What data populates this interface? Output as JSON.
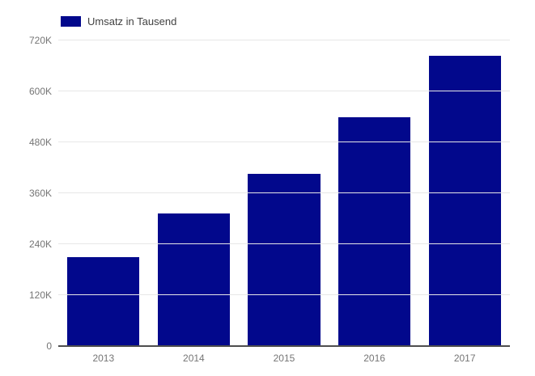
{
  "chart_data": {
    "type": "bar",
    "title": "",
    "legend": {
      "label": "Umsatz in Tausend",
      "position": "top-left"
    },
    "categories": [
      "2013",
      "2014",
      "2015",
      "2016",
      "2017"
    ],
    "values": [
      210000,
      312000,
      405000,
      540000,
      684000
    ],
    "series": [
      {
        "name": "Umsatz in Tausend",
        "values": [
          210000,
          312000,
          405000,
          540000,
          684000
        ]
      }
    ],
    "xlabel": "",
    "ylabel": "",
    "ylim": [
      0,
      720000
    ],
    "yticks": [
      {
        "label": "0",
        "value": 0
      },
      {
        "label": "120K",
        "value": 120000
      },
      {
        "label": "240K",
        "value": 240000
      },
      {
        "label": "360K",
        "value": 360000
      },
      {
        "label": "480K",
        "value": 480000
      },
      {
        "label": "600K",
        "value": 600000
      },
      {
        "label": "720K",
        "value": 720000
      }
    ],
    "grid": true,
    "colors": {
      "bar": "#02088c",
      "gridline": "#e7e7e7",
      "axis_line": "#4e4e4e",
      "tick_label": "#757575",
      "legend_text": "#424242",
      "background": "#ffffff"
    }
  }
}
